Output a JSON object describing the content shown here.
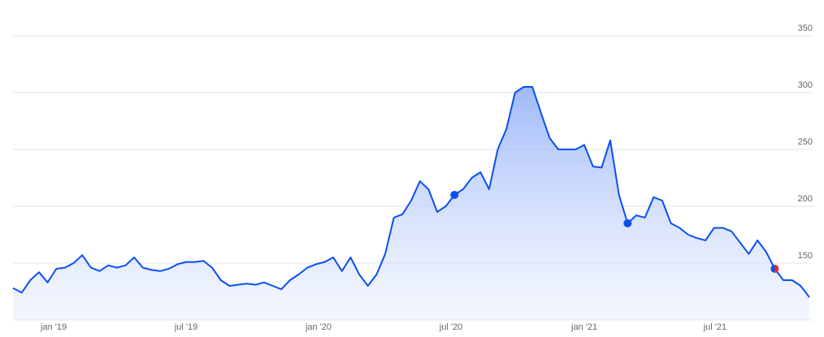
{
  "chart_data": {
    "type": "line",
    "values": [
      128,
      124,
      135,
      142,
      133,
      145,
      146,
      150,
      157,
      146,
      143,
      148,
      146,
      148,
      155,
      146,
      144,
      143,
      145,
      149,
      151,
      151,
      152,
      146,
      135,
      130,
      131,
      132,
      131,
      133,
      130,
      127,
      135,
      140,
      146,
      149,
      151,
      155,
      143,
      155,
      140,
      130,
      140,
      158,
      190,
      193,
      205,
      222,
      215,
      195,
      200,
      210,
      215,
      225,
      230,
      215,
      250,
      268,
      300,
      305,
      305,
      282,
      260,
      250,
      250,
      250,
      254,
      235,
      234,
      258,
      210,
      185,
      192,
      190,
      208,
      205,
      185,
      181,
      175,
      172,
      170,
      181,
      181,
      178,
      168,
      158,
      170,
      160,
      145,
      135,
      135,
      130,
      120
    ],
    "color": "#0b4ff0",
    "ylim": [
      100,
      360
    ],
    "yticks": [
      150,
      200,
      250,
      300,
      350
    ],
    "xlim": [
      0,
      92
    ],
    "xticks": [
      {
        "value": 4.7,
        "label": "jan '19"
      },
      {
        "value": 20,
        "label": "jul '19"
      },
      {
        "value": 35.3,
        "label": "jan '20"
      },
      {
        "value": 50.6,
        "label": "jul '20"
      },
      {
        "value": 66,
        "label": "jan '21"
      },
      {
        "value": 81.1,
        "label": "jul '21"
      }
    ],
    "grid": true
  }
}
